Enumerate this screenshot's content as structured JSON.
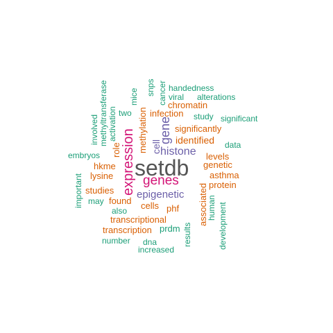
{
  "palette": {
    "dark": "#555555",
    "magenta": "#d31577",
    "purple": "#6b5fa8",
    "orange": "#d95f02",
    "teal": "#1b9e77"
  },
  "words": [
    {
      "key": "setdb",
      "text": "setdb",
      "color": "#555555"
    },
    {
      "key": "genes",
      "text": "genes",
      "color": "#d31577"
    },
    {
      "key": "expression",
      "text": "expression",
      "color": "#d31577"
    },
    {
      "key": "histone",
      "text": "histone",
      "color": "#6b5fa8"
    },
    {
      "key": "gene",
      "text": "gene",
      "color": "#6b5fa8"
    },
    {
      "key": "epigenetic",
      "text": "epigenetic",
      "color": "#6b5fa8"
    },
    {
      "key": "cell",
      "text": "cell",
      "color": "#6b5fa8"
    },
    {
      "key": "identified",
      "text": "identified",
      "color": "#d95f02"
    },
    {
      "key": "significantly",
      "text": "significantly",
      "color": "#d95f02"
    },
    {
      "key": "chromatin",
      "text": "chromatin",
      "color": "#d95f02"
    },
    {
      "key": "infection",
      "text": "infection",
      "color": "#d95f02"
    },
    {
      "key": "methylation",
      "text": "methylation",
      "color": "#d95f02"
    },
    {
      "key": "role",
      "text": "role",
      "color": "#d95f02"
    },
    {
      "key": "hkme",
      "text": "hkme",
      "color": "#d95f02"
    },
    {
      "key": "lysine",
      "text": "lysine",
      "color": "#d95f02"
    },
    {
      "key": "studies",
      "text": "studies",
      "color": "#d95f02"
    },
    {
      "key": "found",
      "text": "found",
      "color": "#d95f02"
    },
    {
      "key": "cells",
      "text": "cells",
      "color": "#d95f02"
    },
    {
      "key": "phf",
      "text": "phf",
      "color": "#d95f02"
    },
    {
      "key": "transcriptional",
      "text": "transcriptional",
      "color": "#d95f02"
    },
    {
      "key": "transcription",
      "text": "transcription",
      "color": "#d95f02"
    },
    {
      "key": "levels",
      "text": "levels",
      "color": "#d95f02"
    },
    {
      "key": "genetic",
      "text": "genetic",
      "color": "#d95f02"
    },
    {
      "key": "asthma",
      "text": "asthma",
      "color": "#d95f02"
    },
    {
      "key": "protein",
      "text": "protein",
      "color": "#d95f02"
    },
    {
      "key": "associated",
      "text": "associated",
      "color": "#d95f02"
    },
    {
      "key": "handedness",
      "text": "handedness",
      "color": "#1b9e77"
    },
    {
      "key": "alterations",
      "text": "alterations",
      "color": "#1b9e77"
    },
    {
      "key": "viral",
      "text": "viral",
      "color": "#1b9e77"
    },
    {
      "key": "study",
      "text": "study",
      "color": "#1b9e77"
    },
    {
      "key": "significant",
      "text": "significant",
      "color": "#1b9e77"
    },
    {
      "key": "data",
      "text": "data",
      "color": "#1b9e77"
    },
    {
      "key": "two",
      "text": "two",
      "color": "#1b9e77"
    },
    {
      "key": "embryos",
      "text": "embryos",
      "color": "#1b9e77"
    },
    {
      "key": "may",
      "text": "may",
      "color": "#1b9e77"
    },
    {
      "key": "also",
      "text": "also",
      "color": "#1b9e77"
    },
    {
      "key": "prdm",
      "text": "prdm",
      "color": "#1b9e77"
    },
    {
      "key": "number",
      "text": "number",
      "color": "#1b9e77"
    },
    {
      "key": "dna",
      "text": "dna",
      "color": "#1b9e77"
    },
    {
      "key": "increased",
      "text": "increased",
      "color": "#1b9e77"
    },
    {
      "key": "methyltransferase",
      "text": "methyltransferase",
      "color": "#1b9e77"
    },
    {
      "key": "involved",
      "text": "involved",
      "color": "#1b9e77"
    },
    {
      "key": "activation",
      "text": "activation",
      "color": "#1b9e77"
    },
    {
      "key": "mice",
      "text": "mice",
      "color": "#1b9e77"
    },
    {
      "key": "snps",
      "text": "snps",
      "color": "#1b9e77"
    },
    {
      "key": "cancer",
      "text": "cancer",
      "color": "#1b9e77"
    },
    {
      "key": "important",
      "text": "important",
      "color": "#1b9e77"
    },
    {
      "key": "human",
      "text": "human",
      "color": "#1b9e77"
    },
    {
      "key": "development",
      "text": "development",
      "color": "#1b9e77"
    },
    {
      "key": "results",
      "text": "results",
      "color": "#1b9e77"
    }
  ]
}
